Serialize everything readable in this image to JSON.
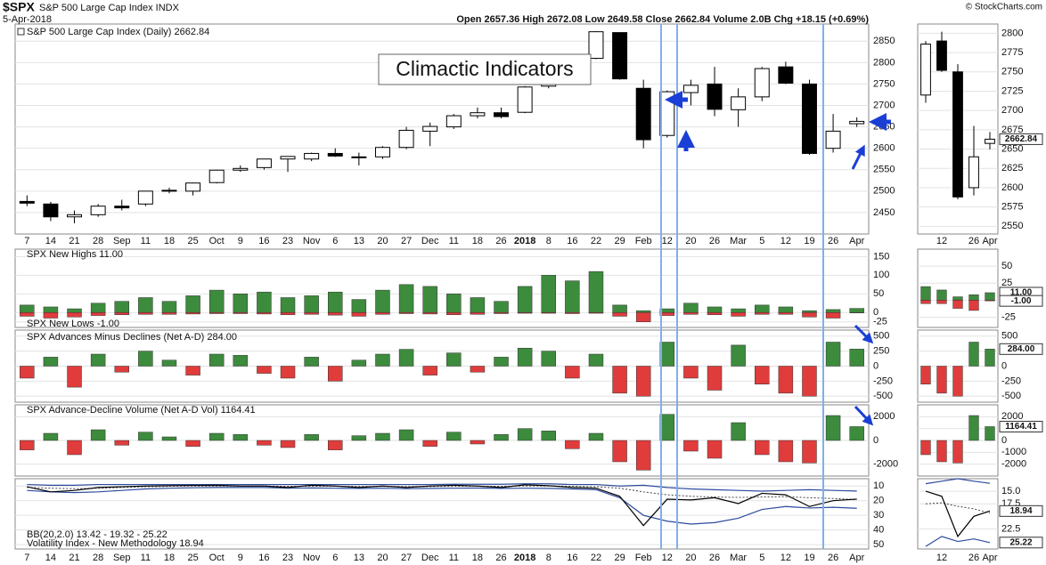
{
  "header": {
    "symbol": "$SPX",
    "name": "S&P 500 Large Cap Index INDX",
    "date": "5-Apr-2018",
    "quote": "Open 2657.36  High 2672.08  Low 2649.58  Close 2662.84  Volume 2.0B  Chg +18.15 (+0.69%)",
    "credit": "© StockCharts.com"
  },
  "chart_data": [
    {
      "type": "candlestick",
      "legend": "S&P 500 Large Cap Index (Daily) 2662.84",
      "annotation": "Climactic Indicators",
      "categories": [
        "7",
        "14",
        "21",
        "28",
        "Sep",
        "11",
        "18",
        "25",
        "Oct",
        "9",
        "16",
        "23",
        "Nov",
        "6",
        "13",
        "20",
        "27",
        "Dec",
        "11",
        "18",
        "26",
        "2018",
        "8",
        "16",
        "22",
        "29",
        "Feb",
        "12",
        "20",
        "26",
        "Mar",
        "5",
        "12",
        "19",
        "26",
        "Apr"
      ],
      "open": [
        2476,
        2470,
        2440,
        2445,
        2465,
        2470,
        2500,
        2500,
        2520,
        2549,
        2555,
        2575,
        2575,
        2588,
        2580,
        2580,
        2602,
        2640,
        2650,
        2676,
        2683,
        2684,
        2745,
        2790,
        2810,
        2870,
        2740,
        2630,
        2730,
        2750,
        2690,
        2720,
        2790,
        2750,
        2600,
        2657.36
      ],
      "high": [
        2490,
        2475,
        2455,
        2470,
        2480,
        2500,
        2508,
        2520,
        2550,
        2560,
        2575,
        2580,
        2590,
        2600,
        2590,
        2605,
        2650,
        2660,
        2680,
        2695,
        2695,
        2745,
        2790,
        2810,
        2873,
        2870,
        2760,
        2735,
        2760,
        2790,
        2740,
        2790,
        2802,
        2760,
        2680,
        2672.08
      ],
      "low": [
        2465,
        2430,
        2425,
        2440,
        2455,
        2465,
        2495,
        2490,
        2518,
        2545,
        2550,
        2545,
        2570,
        2580,
        2560,
        2575,
        2598,
        2605,
        2645,
        2670,
        2670,
        2682,
        2740,
        2765,
        2808,
        2760,
        2600,
        2625,
        2700,
        2675,
        2650,
        2710,
        2750,
        2585,
        2590,
        2649.58
      ],
      "close": [
        2472,
        2440,
        2445,
        2465,
        2461,
        2500,
        2502,
        2519,
        2549,
        2553,
        2575,
        2581,
        2588,
        2582,
        2579,
        2602,
        2642,
        2651,
        2676,
        2683,
        2674,
        2743,
        2786,
        2810,
        2872,
        2762,
        2620,
        2732,
        2747,
        2691,
        2720,
        2786,
        2752,
        2588,
        2640,
        2662.84
      ],
      "up_color": "#ffffff",
      "down_color": "#000000",
      "ylim": [
        2400,
        2890
      ],
      "yticks": [
        2450,
        2500,
        2550,
        2600,
        2650,
        2700,
        2750,
        2800,
        2850
      ],
      "inset": {
        "ylim": [
          2540,
          2812
        ],
        "yticks": [
          2550,
          2575,
          2600,
          2625,
          2650,
          2675,
          2700,
          2725,
          2750,
          2775,
          2800
        ]
      }
    },
    {
      "type": "bar",
      "series": [
        {
          "legend": "SPX New Highs 11.00",
          "color": "#3d8b3d",
          "last_label": "11.00",
          "values": [
            20,
            15,
            10,
            25,
            30,
            40,
            30,
            45,
            60,
            50,
            55,
            40,
            45,
            55,
            35,
            60,
            75,
            70,
            50,
            40,
            30,
            70,
            100,
            85,
            110,
            20,
            5,
            10,
            25,
            15,
            10,
            20,
            15,
            5,
            8,
            11
          ]
        },
        {
          "legend": "SPX New Lows -1.00",
          "color": "#e03c3c",
          "last_label": "-1.00",
          "values": [
            -10,
            -15,
            -12,
            -8,
            -6,
            -5,
            -5,
            -4,
            -3,
            -3,
            -4,
            -6,
            -5,
            -7,
            -10,
            -5,
            -3,
            -4,
            -6,
            -5,
            -3,
            -2,
            -2,
            -3,
            -2,
            -10,
            -25,
            -8,
            -5,
            -6,
            -10,
            -5,
            -5,
            -12,
            -15,
            -1
          ]
        }
      ],
      "ylim": [
        -40,
        170
      ],
      "yticks": [
        -25,
        0,
        50,
        100,
        150
      ],
      "inset": {
        "ylim": [
          -40,
          75
        ],
        "yticks": [
          -25,
          0,
          25,
          50
        ]
      }
    },
    {
      "type": "signed-bar",
      "legend": "SPX Advances Minus Declines (Net A-D) 284.00",
      "last_label": "284.00",
      "up_color": "#3d8b3d",
      "down_color": "#e03c3c",
      "values": [
        -200,
        150,
        -350,
        200,
        -100,
        250,
        100,
        -150,
        200,
        180,
        -120,
        -200,
        150,
        -250,
        100,
        200,
        280,
        -150,
        220,
        -100,
        150,
        300,
        250,
        -200,
        200,
        -450,
        -500,
        400,
        -200,
        -400,
        350,
        -300,
        -450,
        -500,
        400,
        284
      ],
      "ylim": [
        -600,
        600
      ],
      "yticks": [
        -500,
        -250,
        0,
        250,
        500
      ]
    },
    {
      "type": "signed-bar",
      "legend": "SPX Advance-Decline Volume (Net A-D Vol) 1164.41",
      "up_color": "#3d8b3d",
      "down_color": "#e03c3c",
      "values": [
        -800,
        600,
        -1200,
        900,
        -400,
        700,
        300,
        -500,
        600,
        500,
        -400,
        -600,
        500,
        -800,
        400,
        600,
        900,
        -500,
        700,
        -300,
        500,
        1000,
        800,
        -700,
        600,
        -1800,
        -2500,
        2200,
        -900,
        -1500,
        1500,
        -1200,
        -1800,
        -1900,
        2100,
        1164.41
      ],
      "ylim": [
        -3000,
        3000
      ],
      "yticks": [
        -2000,
        0,
        2000
      ],
      "inset": {
        "ylim": [
          -3000,
          3000
        ],
        "yticks": [
          -2000,
          -1000,
          0,
          1000,
          2000
        ]
      }
    },
    {
      "type": "line",
      "inverted": true,
      "bands": {
        "legend": "BB(20,2.0) 13.42 - 19.32 - 25.22",
        "color": "#2c4a9e",
        "lower": [
          9,
          9.5,
          9.5,
          9,
          9,
          9,
          9,
          9,
          9,
          9,
          9,
          9,
          9,
          9,
          9,
          9,
          9,
          9,
          8.8,
          8.8,
          8.8,
          8.5,
          8.5,
          9,
          9,
          10,
          9.5,
          11,
          12,
          12.5,
          13,
          13.5,
          13,
          12.5,
          13,
          13.42
        ],
        "middle": [
          11,
          11.5,
          11.8,
          11.5,
          11,
          10.5,
          10.2,
          10,
          10,
          10,
          10,
          10.2,
          10.2,
          10.2,
          10.3,
          10.3,
          10.4,
          10.3,
          10.2,
          10.1,
          10.2,
          10,
          10,
          10.2,
          10.5,
          11.5,
          14,
          16,
          17,
          17.5,
          17.8,
          17.5,
          17.3,
          18,
          18.5,
          19.32
        ],
        "upper": [
          13,
          14,
          14.5,
          14,
          13,
          12,
          11.5,
          11.2,
          11,
          11,
          11,
          11.5,
          11.3,
          11.5,
          11.6,
          11.5,
          11.8,
          11.6,
          11.5,
          11.4,
          11.6,
          11.5,
          11.6,
          12,
          12.5,
          18,
          30,
          34,
          36,
          35,
          32,
          26,
          24,
          25,
          24.5,
          25.22
        ]
      },
      "series": [
        {
          "legend": "Volatility Index - New Methodology 18.94",
          "color": "#000000",
          "values": [
            10.5,
            14,
            13,
            11,
            10.5,
            10,
            9.8,
            9.6,
            9.5,
            10,
            10,
            11,
            9.5,
            10,
            11,
            10,
            11,
            10,
            9.5,
            10,
            11,
            9.2,
            9.8,
            11,
            11.5,
            17,
            37,
            19,
            19.5,
            18,
            22,
            15,
            16,
            24,
            20,
            18.94
          ]
        }
      ],
      "ylim": [
        5,
        53
      ],
      "yticks": [
        10,
        20,
        30,
        40,
        50
      ],
      "inset": {
        "ylim": [
          12.5,
          26.5
        ],
        "yticks": [
          {
            "value": 15,
            "label": "15.0"
          },
          17.5,
          22.5
        ]
      }
    }
  ]
}
